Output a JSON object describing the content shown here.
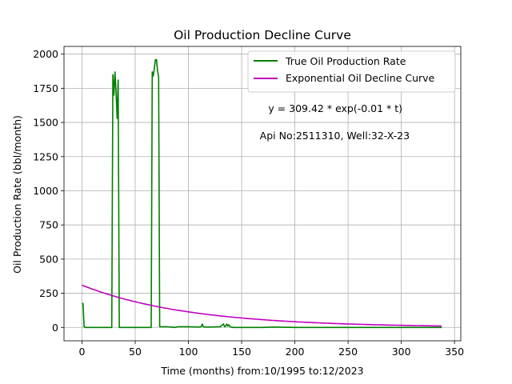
{
  "chart_data": {
    "type": "line",
    "title": "Oil Production Decline Curve",
    "xlabel": "Time (months) from:10/1995 to:12/2023",
    "ylabel": "Oil Production Rate (bbl/month)",
    "xlim": [
      -16.9,
      355.9
    ],
    "ylim": [
      -97.9,
      2056.6
    ],
    "xticks": [
      0,
      50,
      100,
      150,
      200,
      250,
      300,
      350
    ],
    "yticks": [
      0,
      250,
      500,
      750,
      1000,
      1250,
      1500,
      1750,
      2000
    ],
    "grid": true,
    "legend_position": "top-right",
    "annotations": [
      {
        "text": "y = 309.42 * exp(-0.01 * t)",
        "x": 175,
        "y": 1600
      },
      {
        "text": "Api No:2511310, Well:32-X-23",
        "x": 167,
        "y": 1400
      }
    ],
    "series": [
      {
        "name": "True Oil Production Rate",
        "color": "#008000",
        "kind": "points",
        "x": [
          0,
          1,
          2,
          3,
          10,
          20,
          28,
          29,
          30,
          31,
          32,
          33,
          34,
          35,
          36,
          37,
          38,
          40,
          50,
          60,
          65,
          66,
          67,
          68,
          69,
          70,
          71,
          72,
          73,
          74,
          80,
          88,
          90,
          100,
          110,
          112,
          113,
          114,
          115,
          120,
          130,
          133,
          134,
          135,
          136,
          137,
          138,
          139,
          140,
          141,
          142,
          150,
          170,
          180,
          200,
          250,
          300,
          338
        ],
        "values": [
          175,
          175,
          5,
          0,
          0,
          0,
          0,
          1850,
          1700,
          1870,
          1720,
          1530,
          1810,
          0,
          0,
          0,
          0,
          0,
          0,
          0,
          0,
          1870,
          1840,
          1900,
          1960,
          1960,
          1880,
          1830,
          5,
          5,
          5,
          0,
          5,
          5,
          3,
          5,
          25,
          5,
          3,
          3,
          5,
          25,
          5,
          10,
          25,
          10,
          20,
          5,
          3,
          2,
          0,
          0,
          0,
          3,
          0,
          0,
          0,
          0
        ]
      },
      {
        "name": "Exponential Oil Decline Curve",
        "color": "#bf00bf",
        "kind": "function",
        "a": 309.42,
        "b": 0.01,
        "x_range": [
          0,
          338
        ]
      }
    ]
  }
}
